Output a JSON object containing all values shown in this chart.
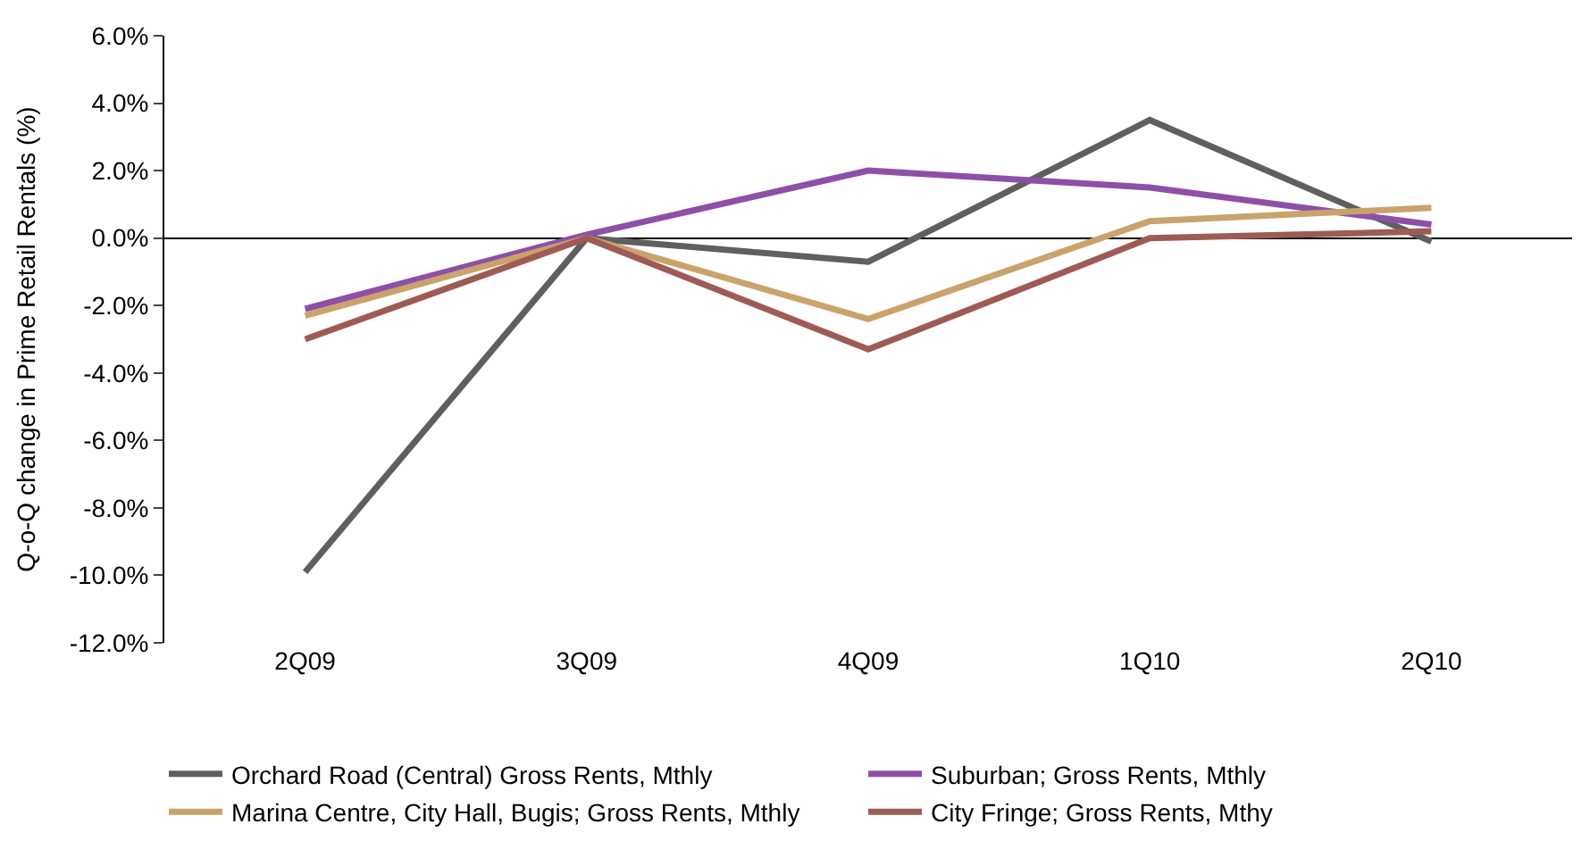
{
  "chart_data": {
    "type": "line",
    "ylabel": "Q-o-Q change in Prime Retail Rentals (%)",
    "categories": [
      "2Q09",
      "3Q09",
      "4Q09",
      "1Q10",
      "2Q10"
    ],
    "series": [
      {
        "name": "Orchard Road (Central) Gross Rents, Mthly",
        "color": "#5f5f5f",
        "values": [
          -9.9,
          0.0,
          -0.7,
          3.5,
          -0.1
        ]
      },
      {
        "name": "Suburban; Gross Rents, Mthly",
        "color": "#8e4fa8",
        "values": [
          -2.1,
          0.1,
          2.0,
          1.5,
          0.4
        ]
      },
      {
        "name": "Marina Centre, City Hall, Bugis; Gross Rents, Mthly",
        "color": "#c9a36b",
        "values": [
          -2.3,
          0.0,
          -2.4,
          0.5,
          0.9
        ]
      },
      {
        "name": "City Fringe; Gross Rents, Mthy",
        "color": "#9e5b55",
        "values": [
          -3.0,
          0.0,
          -3.3,
          0.0,
          0.2
        ]
      }
    ],
    "ylim": [
      -12,
      6
    ],
    "yticks": [
      {
        "value": 6,
        "label": "6.0%"
      },
      {
        "value": 4,
        "label": "4.0%"
      },
      {
        "value": 2,
        "label": "2.0%"
      },
      {
        "value": 0,
        "label": "0.0%"
      },
      {
        "value": -2,
        "label": "-2.0%"
      },
      {
        "value": -4,
        "label": "-4.0%"
      },
      {
        "value": -6,
        "label": "-6.0%"
      },
      {
        "value": -8,
        "label": "-8.0%"
      },
      {
        "value": -10,
        "label": "-10.0%"
      },
      {
        "value": -12,
        "label": "-12.0%"
      }
    ],
    "legend": "bottom",
    "marker": "none",
    "line_style": "solid"
  }
}
